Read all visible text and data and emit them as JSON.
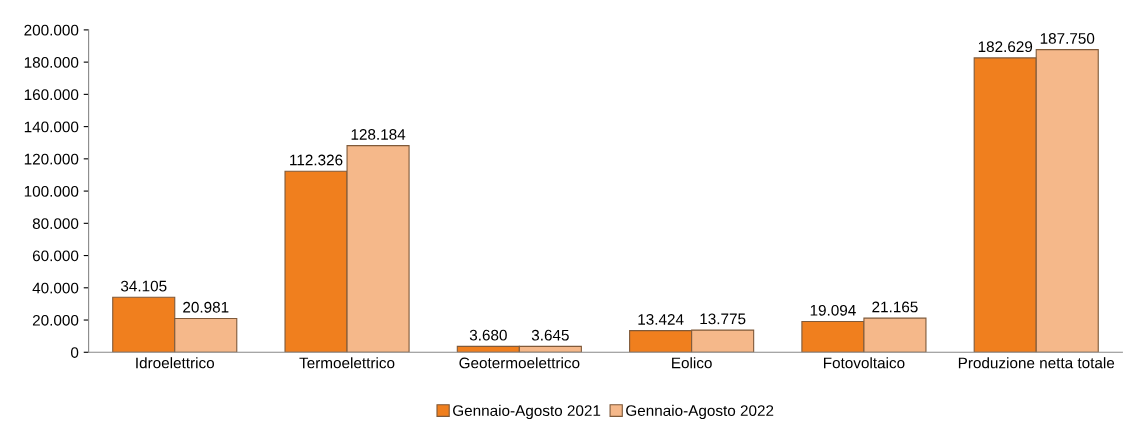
{
  "chart_data": {
    "type": "bar",
    "categories": [
      "Idroelettrico",
      "Termoelettrico",
      "Geotermoelettrico",
      "Eolico",
      "Fotovoltaico",
      "Produzione netta totale"
    ],
    "series": [
      {
        "name": "Gennaio-Agosto 2021",
        "color": "#f07f1e",
        "values": [
          34105,
          112326,
          3680,
          13424,
          19094,
          182629
        ],
        "value_labels": [
          "34.105",
          "112.326",
          "3.680",
          "13.424",
          "19.094",
          "182.629"
        ]
      },
      {
        "name": "Gennaio-Agosto 2022",
        "color": "#f5b88a",
        "values": [
          20981,
          128184,
          3645,
          13775,
          21165,
          187750
        ],
        "value_labels": [
          "20.981",
          "128.184",
          "3.645",
          "13.775",
          "21.165",
          "187.750"
        ]
      }
    ],
    "ylim": [
      0,
      200000
    ],
    "yticks": [
      {
        "value": 0,
        "label": "0"
      },
      {
        "value": 20000,
        "label": "20.000"
      },
      {
        "value": 40000,
        "label": "40.000"
      },
      {
        "value": 60000,
        "label": "60.000"
      },
      {
        "value": 80000,
        "label": "80.000"
      },
      {
        "value": 100000,
        "label": "100.000"
      },
      {
        "value": 120000,
        "label": "120.000"
      },
      {
        "value": 140000,
        "label": "140.000"
      },
      {
        "value": 160000,
        "label": "160.000"
      },
      {
        "value": 180000,
        "label": "180.000"
      },
      {
        "value": 200000,
        "label": "200.000"
      }
    ],
    "grid": false,
    "legend": "bottom"
  }
}
